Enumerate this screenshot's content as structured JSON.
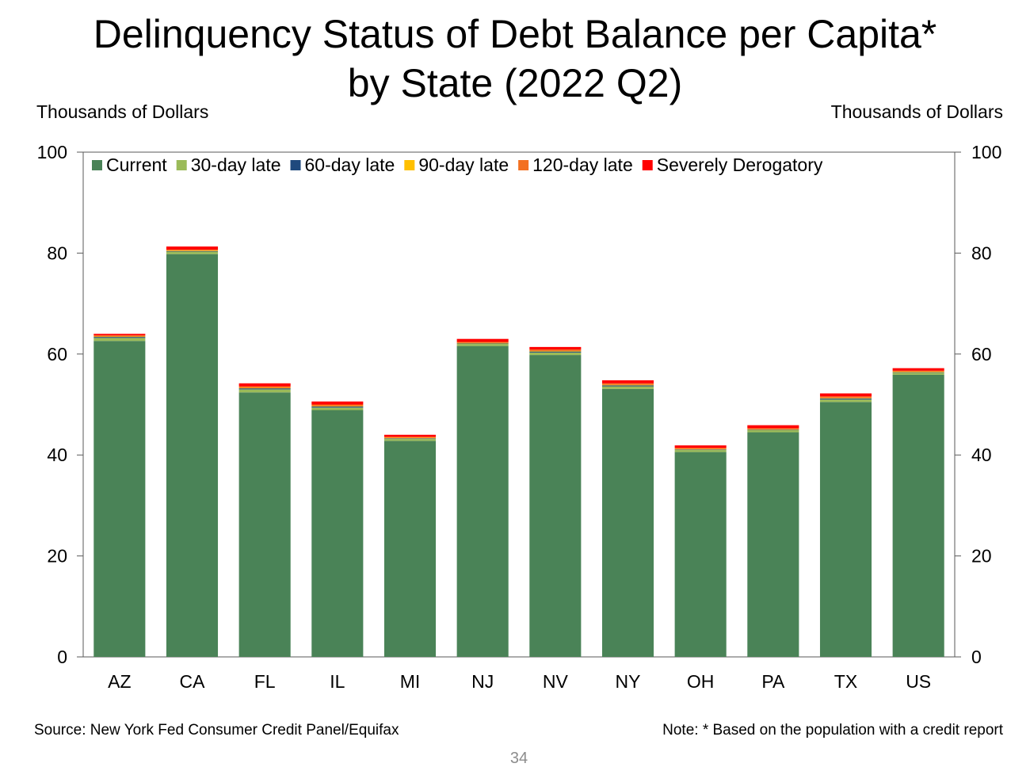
{
  "title_line1": "Delinquency Status of Debt Balance per Capita*",
  "title_line2": "by State (2022 Q2)",
  "unit_left": "Thousands of Dollars",
  "unit_right": "Thousands of Dollars",
  "source": "Source: New York Fed Consumer Credit Panel/Equifax",
  "note": "Note: * Based on the population with a credit report",
  "page_number": "34",
  "chart_data": {
    "type": "bar",
    "stacked": true,
    "ylim": [
      0,
      100
    ],
    "yticks": [
      0,
      20,
      40,
      60,
      80,
      100
    ],
    "ylabel": "Thousands of Dollars",
    "y2label": "Thousands of Dollars",
    "legend_placement": "top",
    "categories": [
      "AZ",
      "CA",
      "FL",
      "IL",
      "MI",
      "NJ",
      "NV",
      "NY",
      "OH",
      "PA",
      "TX",
      "US"
    ],
    "series": [
      {
        "name": "Current",
        "color": "#4a8357",
        "values": [
          62.6,
          79.8,
          52.4,
          48.9,
          42.8,
          61.6,
          59.8,
          53.1,
          40.6,
          44.5,
          50.5,
          55.9
        ]
      },
      {
        "name": "30-day late",
        "color": "#9bbb59",
        "values": [
          0.6,
          0.5,
          0.6,
          0.5,
          0.4,
          0.4,
          0.5,
          0.5,
          0.4,
          0.4,
          0.5,
          0.4
        ]
      },
      {
        "name": "60-day late",
        "color": "#1f497d",
        "values": [
          0.2,
          0.1,
          0.2,
          0.2,
          0.1,
          0.1,
          0.2,
          0.2,
          0.1,
          0.1,
          0.2,
          0.1
        ]
      },
      {
        "name": "90-day late",
        "color": "#ffc000",
        "values": [
          0.1,
          0.1,
          0.1,
          0.1,
          0.1,
          0.1,
          0.1,
          0.1,
          0.1,
          0.1,
          0.1,
          0.1
        ]
      },
      {
        "name": "120-day late",
        "color": "#f37021",
        "values": [
          0.2,
          0.2,
          0.3,
          0.3,
          0.2,
          0.2,
          0.3,
          0.3,
          0.2,
          0.2,
          0.3,
          0.2
        ]
      },
      {
        "name": "Severely Derogatory",
        "color": "#ff0000",
        "values": [
          0.3,
          0.6,
          0.6,
          0.6,
          0.4,
          0.6,
          0.5,
          0.6,
          0.5,
          0.6,
          0.6,
          0.5
        ]
      }
    ]
  }
}
